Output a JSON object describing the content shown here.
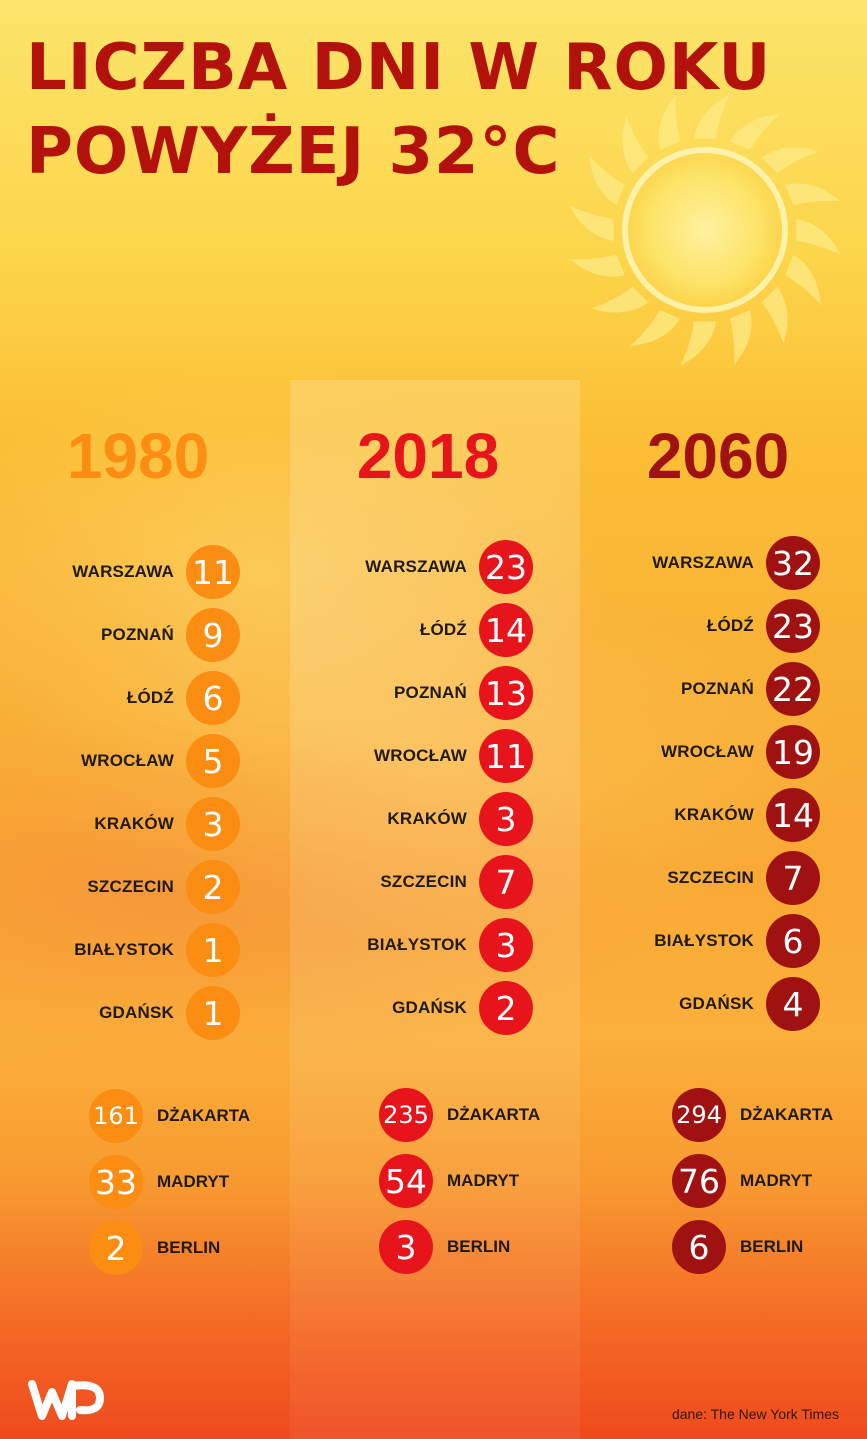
{
  "title": {
    "line1": "LICZBA DNI W ROKU",
    "line2": "POWYŻEJ 32°C"
  },
  "source": "dane: The New York Times",
  "colors": {
    "1980": "#fa8d12",
    "2018": "#e8141b",
    "2060": "#a01212",
    "title": "#b2120b"
  },
  "chart_data": {
    "type": "table",
    "title": "LICZBA DNI W ROKU POWYŻEJ 32°C",
    "columns": [
      {
        "year": "1980",
        "poland": [
          {
            "city": "WARSZAWA",
            "value": 11
          },
          {
            "city": "POZNAŃ",
            "value": 9
          },
          {
            "city": "ŁÓDŹ",
            "value": 6
          },
          {
            "city": "WROCŁAW",
            "value": 5
          },
          {
            "city": "KRAKÓW",
            "value": 3
          },
          {
            "city": "SZCZECIN",
            "value": 2
          },
          {
            "city": "BIAŁYSTOK",
            "value": 1
          },
          {
            "city": "GDAŃSK",
            "value": 1
          }
        ],
        "world": [
          {
            "city": "DŻAKARTA",
            "value": 161
          },
          {
            "city": "MADRYT",
            "value": 33
          },
          {
            "city": "BERLIN",
            "value": 2
          }
        ]
      },
      {
        "year": "2018",
        "poland": [
          {
            "city": "WARSZAWA",
            "value": 23
          },
          {
            "city": "ŁÓDŹ",
            "value": 14
          },
          {
            "city": "POZNAŃ",
            "value": 13
          },
          {
            "city": "WROCŁAW",
            "value": 11
          },
          {
            "city": "KRAKÓW",
            "value": 3
          },
          {
            "city": "SZCZECIN",
            "value": 7
          },
          {
            "city": "BIAŁYSTOK",
            "value": 3
          },
          {
            "city": "GDAŃSK",
            "value": 2
          }
        ],
        "world": [
          {
            "city": "DŻAKARTA",
            "value": 235
          },
          {
            "city": "MADRYT",
            "value": 54
          },
          {
            "city": "BERLIN",
            "value": 3
          }
        ]
      },
      {
        "year": "2060",
        "poland": [
          {
            "city": "WARSZAWA",
            "value": 32
          },
          {
            "city": "ŁÓDŹ",
            "value": 23
          },
          {
            "city": "POZNAŃ",
            "value": 22
          },
          {
            "city": "WROCŁAW",
            "value": 19
          },
          {
            "city": "KRAKÓW",
            "value": 14
          },
          {
            "city": "SZCZECIN",
            "value": 7
          },
          {
            "city": "BIAŁYSTOK",
            "value": 6
          },
          {
            "city": "GDAŃSK",
            "value": 4
          }
        ],
        "world": [
          {
            "city": "DŻAKARTA",
            "value": 294
          },
          {
            "city": "MADRYT",
            "value": 76
          },
          {
            "city": "BERLIN",
            "value": 6
          }
        ]
      }
    ]
  }
}
